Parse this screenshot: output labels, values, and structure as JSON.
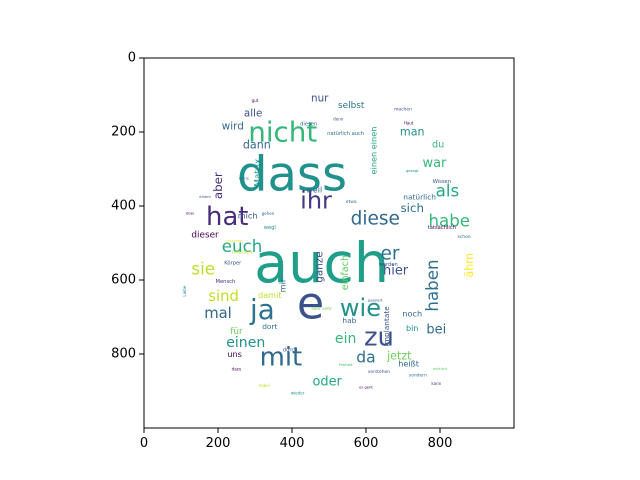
{
  "chart_data": {
    "type": "wordcloud",
    "title": "",
    "xlabel": "",
    "ylabel": "",
    "xlim": [
      0,
      1000
    ],
    "ylim": [
      1000,
      0
    ],
    "x_ticks": [
      0,
      200,
      400,
      600,
      800
    ],
    "y_ticks": [
      0,
      200,
      400,
      600,
      800
    ],
    "grid": false,
    "mask": "circle",
    "background": "#ffffff",
    "words": [
      {
        "text": "auch",
        "x": 480,
        "y": 555,
        "size": 150,
        "rot": 0,
        "color": "#1f9e89"
      },
      {
        "text": "dass",
        "x": 400,
        "y": 315,
        "size": 130,
        "rot": 0,
        "color": "#21918c"
      },
      {
        "text": "e",
        "x": 450,
        "y": 665,
        "size": 120,
        "rot": 0,
        "color": "#3b528b"
      },
      {
        "text": "nicht",
        "x": 375,
        "y": 200,
        "size": 75,
        "rot": 0,
        "color": "#35b779"
      },
      {
        "text": "hat",
        "x": 225,
        "y": 430,
        "size": 70,
        "rot": 0,
        "color": "#472d7b"
      },
      {
        "text": "ja",
        "x": 320,
        "y": 680,
        "size": 75,
        "rot": 0,
        "color": "#2c728e"
      },
      {
        "text": "mit",
        "x": 370,
        "y": 810,
        "size": 70,
        "rot": 0,
        "color": "#31688e"
      },
      {
        "text": "ihr",
        "x": 465,
        "y": 385,
        "size": 65,
        "rot": 0,
        "color": "#443983"
      },
      {
        "text": "wie",
        "x": 585,
        "y": 675,
        "size": 65,
        "rot": 0,
        "color": "#21918c"
      },
      {
        "text": "zu",
        "x": 635,
        "y": 755,
        "size": 70,
        "rot": 0,
        "color": "#3b528b"
      },
      {
        "text": "diese",
        "x": 625,
        "y": 435,
        "size": 50,
        "rot": 0,
        "color": "#31688e"
      },
      {
        "text": "habe",
        "x": 825,
        "y": 440,
        "size": 45,
        "rot": 0,
        "color": "#35b779"
      },
      {
        "text": "als",
        "x": 820,
        "y": 360,
        "size": 45,
        "rot": 0,
        "color": "#22a884"
      },
      {
        "text": "er",
        "x": 665,
        "y": 530,
        "size": 50,
        "rot": 0,
        "color": "#2c728e"
      },
      {
        "text": "euch",
        "x": 265,
        "y": 510,
        "size": 45,
        "rot": 0,
        "color": "#22a884"
      },
      {
        "text": "sie",
        "x": 160,
        "y": 570,
        "size": 45,
        "rot": 0,
        "color": "#bddf26"
      },
      {
        "text": "sind",
        "x": 215,
        "y": 645,
        "size": 40,
        "rot": 0,
        "color": "#bddf26"
      },
      {
        "text": "mal",
        "x": 200,
        "y": 690,
        "size": 40,
        "rot": 0,
        "color": "#31688e"
      },
      {
        "text": "haben",
        "x": 780,
        "y": 615,
        "size": 45,
        "rot": 90,
        "color": "#2c728e"
      },
      {
        "text": "einen",
        "x": 275,
        "y": 770,
        "size": 38,
        "rot": 0,
        "color": "#21918c"
      },
      {
        "text": "ein",
        "x": 545,
        "y": 760,
        "size": 38,
        "rot": 0,
        "color": "#35b779"
      },
      {
        "text": "da",
        "x": 600,
        "y": 810,
        "size": 42,
        "rot": 0,
        "color": "#2c728e"
      },
      {
        "text": "oder",
        "x": 495,
        "y": 875,
        "size": 35,
        "rot": 0,
        "color": "#22a884"
      },
      {
        "text": "bei",
        "x": 790,
        "y": 735,
        "size": 35,
        "rot": 0,
        "color": "#31688e"
      },
      {
        "text": "jetzt",
        "x": 690,
        "y": 805,
        "size": 30,
        "rot": 0,
        "color": "#6ece58"
      },
      {
        "text": "hier",
        "x": 680,
        "y": 575,
        "size": 35,
        "rot": 0,
        "color": "#3b528b"
      },
      {
        "text": "sich",
        "x": 725,
        "y": 405,
        "size": 32,
        "rot": 0,
        "color": "#2c728e"
      },
      {
        "text": "war",
        "x": 785,
        "y": 285,
        "size": 35,
        "rot": 0,
        "color": "#35b779"
      },
      {
        "text": "man",
        "x": 725,
        "y": 200,
        "size": 30,
        "rot": 0,
        "color": "#21918c"
      },
      {
        "text": "aber",
        "x": 200,
        "y": 345,
        "size": 32,
        "rot": 90,
        "color": "#472d7b"
      },
      {
        "text": "dann",
        "x": 305,
        "y": 235,
        "size": 30,
        "rot": 0,
        "color": "#31688e"
      },
      {
        "text": "wird",
        "x": 240,
        "y": 185,
        "size": 28,
        "rot": 0,
        "color": "#31688e"
      },
      {
        "text": "alle",
        "x": 295,
        "y": 150,
        "size": 28,
        "rot": 0,
        "color": "#3b528b"
      },
      {
        "text": "nur",
        "x": 475,
        "y": 110,
        "size": 28,
        "rot": 0,
        "color": "#3b528b"
      },
      {
        "text": "selbst",
        "x": 560,
        "y": 130,
        "size": 24,
        "rot": 0,
        "color": "#2c728e"
      },
      {
        "text": "ganze",
        "x": 475,
        "y": 565,
        "size": 28,
        "rot": 90,
        "color": "#3b528b"
      },
      {
        "text": "dieser",
        "x": 165,
        "y": 480,
        "size": 24,
        "rot": 0,
        "color": "#440154"
      },
      {
        "text": "mich",
        "x": 280,
        "y": 425,
        "size": 22,
        "rot": 0,
        "color": "#3b528b"
      },
      {
        "text": "ähm",
        "x": 880,
        "y": 560,
        "size": 30,
        "rot": 90,
        "color": "#fde725"
      },
      {
        "text": "Matrix",
        "x": 310,
        "y": 310,
        "size": 24,
        "rot": 90,
        "color": "#21918c"
      },
      {
        "text": "weil",
        "x": 460,
        "y": 355,
        "size": 22,
        "rot": 0,
        "color": "#31688e"
      },
      {
        "text": "einfach",
        "x": 545,
        "y": 580,
        "size": 26,
        "rot": 90,
        "color": "#5ec962"
      },
      {
        "text": "einen einen",
        "x": 620,
        "y": 250,
        "size": 22,
        "rot": 90,
        "color": "#1f9e89"
      },
      {
        "text": "natürlich",
        "x": 745,
        "y": 375,
        "size": 20,
        "rot": 0,
        "color": "#31688e"
      },
      {
        "text": "du",
        "x": 795,
        "y": 235,
        "size": 26,
        "rot": 0,
        "color": "#35b779"
      },
      {
        "text": "damit",
        "x": 340,
        "y": 640,
        "size": 22,
        "rot": 0,
        "color": "#bddf26"
      },
      {
        "text": "mir",
        "x": 375,
        "y": 615,
        "size": 22,
        "rot": 90,
        "color": "#31688e"
      },
      {
        "text": "Implantate",
        "x": 655,
        "y": 725,
        "size": 20,
        "rot": 90,
        "color": "#3b528b"
      },
      {
        "text": "noch",
        "x": 725,
        "y": 690,
        "size": 22,
        "rot": 0,
        "color": "#31688e"
      },
      {
        "text": "bin",
        "x": 725,
        "y": 730,
        "size": 22,
        "rot": 0,
        "color": "#21918c"
      },
      {
        "text": "für",
        "x": 250,
        "y": 740,
        "size": 24,
        "rot": 0,
        "color": "#6ece58"
      },
      {
        "text": "hab",
        "x": 555,
        "y": 710,
        "size": 20,
        "rot": 0,
        "color": "#31688e"
      },
      {
        "text": "dort",
        "x": 340,
        "y": 725,
        "size": 20,
        "rot": 0,
        "color": "#2c728e"
      },
      {
        "text": "uns",
        "x": 245,
        "y": 800,
        "size": 22,
        "rot": 0,
        "color": "#440154"
      },
      {
        "text": "heißt",
        "x": 715,
        "y": 825,
        "size": 22,
        "rot": 0,
        "color": "#31688e"
      },
      {
        "text": "Mensch",
        "x": 220,
        "y": 605,
        "size": 14,
        "rot": 0,
        "color": "#472d7b"
      },
      {
        "text": "Körper",
        "x": 240,
        "y": 555,
        "size": 14,
        "rot": 0,
        "color": "#3b528b"
      },
      {
        "text": "müssen",
        "x": 265,
        "y": 525,
        "size": 14,
        "rot": 0,
        "color": "#b5de2b"
      },
      {
        "text": "wegl",
        "x": 340,
        "y": 460,
        "size": 14,
        "rot": 0,
        "color": "#21918c"
      },
      {
        "text": "Wissen",
        "x": 805,
        "y": 335,
        "size": 14,
        "rot": 0,
        "color": "#3b528b"
      },
      {
        "text": "tatsächlich",
        "x": 805,
        "y": 460,
        "size": 14,
        "rot": 0,
        "color": "#440154"
      },
      {
        "text": "schon",
        "x": 865,
        "y": 485,
        "size": 12,
        "rot": 0,
        "color": "#31688e"
      },
      {
        "text": "natürlich auch",
        "x": 545,
        "y": 205,
        "size": 14,
        "rot": 0,
        "color": "#2c728e"
      },
      {
        "text": "diesen",
        "x": 445,
        "y": 180,
        "size": 14,
        "rot": 0,
        "color": "#31688e"
      },
      {
        "text": "machen",
        "x": 700,
        "y": 140,
        "size": 12,
        "rot": 0,
        "color": "#3b528b"
      },
      {
        "text": "durch",
        "x": 395,
        "y": 790,
        "size": 14,
        "rot": 0,
        "color": "#3b528b"
      },
      {
        "text": "werden",
        "x": 660,
        "y": 560,
        "size": 14,
        "rot": 0,
        "color": "#3b528b"
      },
      {
        "text": "sehr sehr",
        "x": 480,
        "y": 680,
        "size": 12,
        "rot": 0,
        "color": "#6ece58"
      },
      {
        "text": "sondern",
        "x": 740,
        "y": 860,
        "size": 12,
        "rot": 0,
        "color": "#2c728e"
      },
      {
        "text": "verstehen",
        "x": 635,
        "y": 850,
        "size": 12,
        "rot": 0,
        "color": "#3b528b"
      },
      {
        "text": "kann",
        "x": 790,
        "y": 880,
        "size": 11,
        "rot": 0,
        "color": "#472d7b"
      },
      {
        "text": "wieder",
        "x": 415,
        "y": 905,
        "size": 11,
        "rot": 0,
        "color": "#21918c"
      },
      {
        "text": "dabei",
        "x": 325,
        "y": 885,
        "size": 11,
        "rot": 0,
        "color": "#bddf26"
      },
      {
        "text": "dazu",
        "x": 250,
        "y": 840,
        "size": 11,
        "rot": 0,
        "color": "#440154"
      },
      {
        "text": "gehen",
        "x": 335,
        "y": 420,
        "size": 11,
        "rot": 0,
        "color": "#31688e"
      },
      {
        "text": "Haut",
        "x": 715,
        "y": 175,
        "size": 11,
        "rot": 0,
        "color": "#440154"
      },
      {
        "text": "Liebe",
        "x": 110,
        "y": 630,
        "size": 11,
        "rot": 90,
        "color": "#21918c"
      },
      {
        "text": "über",
        "x": 125,
        "y": 420,
        "size": 10,
        "rot": 0,
        "color": "#440154"
      },
      {
        "text": "einem",
        "x": 165,
        "y": 375,
        "size": 10,
        "rot": 0,
        "color": "#3b528b"
      },
      {
        "text": "bisschen",
        "x": 245,
        "y": 495,
        "size": 10,
        "rot": 0,
        "color": "#fde725"
      },
      {
        "text": "Freiheit",
        "x": 545,
        "y": 830,
        "size": 10,
        "rot": 0,
        "color": "#35b779"
      },
      {
        "text": "es geht",
        "x": 600,
        "y": 890,
        "size": 10,
        "rot": 0,
        "color": "#440154"
      },
      {
        "text": "wirklich",
        "x": 800,
        "y": 840,
        "size": 10,
        "rot": 0,
        "color": "#5ec962"
      },
      {
        "text": "etwa",
        "x": 560,
        "y": 390,
        "size": 12,
        "rot": 0,
        "color": "#31688e"
      },
      {
        "text": "gut",
        "x": 300,
        "y": 115,
        "size": 11,
        "rot": 0,
        "color": "#440154"
      },
      {
        "text": "denn",
        "x": 525,
        "y": 165,
        "size": 11,
        "rot": 0,
        "color": "#3b528b"
      },
      {
        "text": "keine",
        "x": 270,
        "y": 325,
        "size": 10,
        "rot": 0,
        "color": "#31688e"
      },
      {
        "text": "gesagt",
        "x": 725,
        "y": 305,
        "size": 10,
        "rot": 0,
        "color": "#21918c"
      },
      {
        "text": "passiert",
        "x": 625,
        "y": 655,
        "size": 10,
        "rot": 0,
        "color": "#3b528b"
      }
    ]
  }
}
